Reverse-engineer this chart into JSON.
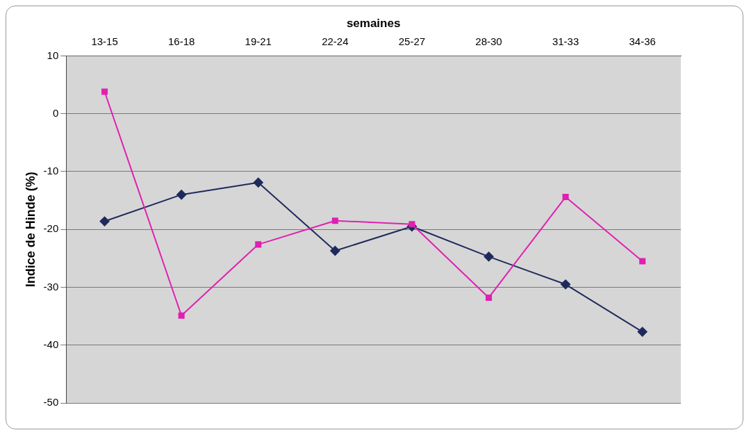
{
  "chart_data": {
    "type": "line",
    "xlabel": "semaines",
    "ylabel": "Indice de Hinde (%)",
    "categories": [
      "13-15",
      "16-18",
      "19-21",
      "22-24",
      "25-27",
      "28-30",
      "31-33",
      "34-36"
    ],
    "series": [
      {
        "color": "#1f2a5c",
        "marker": "diamond",
        "values": [
          -18.6,
          -14.0,
          -11.9,
          -23.7,
          -19.5,
          -24.7,
          -29.5,
          -37.7
        ]
      },
      {
        "color": "#e020b0",
        "marker": "square",
        "values": [
          3.8,
          -34.9,
          -22.6,
          -18.5,
          -19.1,
          -31.8,
          -14.4,
          -25.5
        ]
      }
    ],
    "ylim": [
      -50,
      10
    ],
    "yticks": [
      -50,
      -40,
      -30,
      -20,
      -10,
      0,
      10
    ],
    "grid": "y",
    "legend": false,
    "line_style": "solid"
  }
}
